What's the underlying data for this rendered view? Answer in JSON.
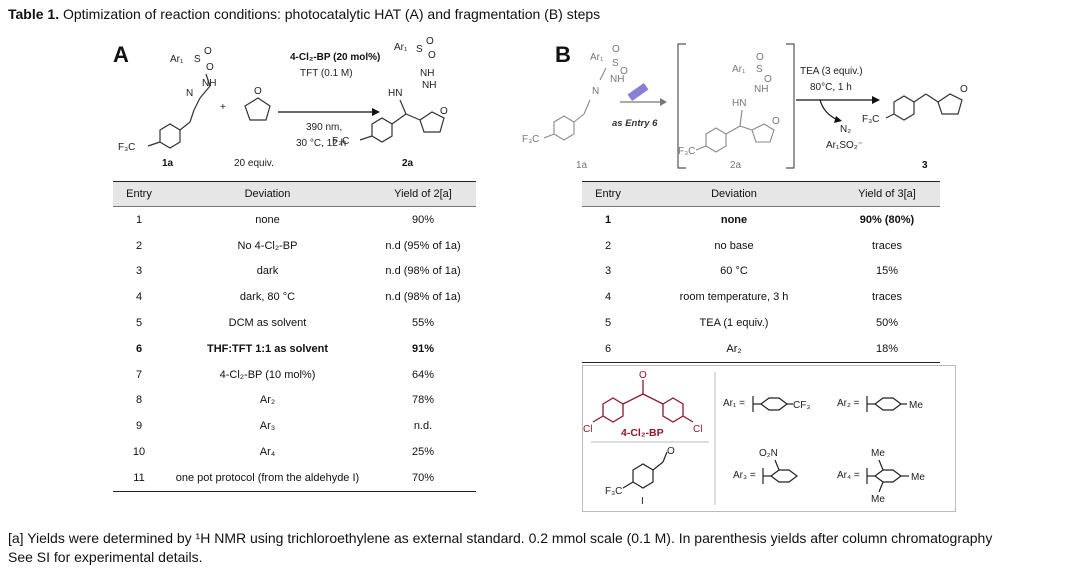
{
  "caption": {
    "label": "Table 1.",
    "text": " Optimization of reaction conditions: photocatalytic HAT (A) and fragmentation (B) steps"
  },
  "panel_a": {
    "letter": "A",
    "reagent_catalyst": "4-Cl₂-BP (20 mol%)",
    "reagent_solvent": "TFT (0.1 M)",
    "condition_light": "390 nm,",
    "condition_temp": "30 °C, 12 h",
    "label_1a": "1a",
    "label_equiv": "20 equiv.",
    "label_2a": "2a",
    "ar1": "Ar₁",
    "f3c": "F₃C",
    "headers": [
      "Entry",
      "Deviation",
      "Yield of 2[a]"
    ],
    "rows": [
      {
        "entry": "1",
        "deviation": "none",
        "yield": "90%"
      },
      {
        "entry": "2",
        "deviation": "No 4-Cl₂-BP",
        "yield": "n.d (95% of 1a)"
      },
      {
        "entry": "3",
        "deviation": "dark",
        "yield": "n.d (98% of 1a)"
      },
      {
        "entry": "4",
        "deviation": "dark, 80 °C",
        "yield": "n.d (98% of 1a)"
      },
      {
        "entry": "5",
        "deviation": "DCM as solvent",
        "yield": "55%"
      },
      {
        "entry": "6",
        "deviation": "THF:TFT 1:1 as solvent",
        "yield": "91%"
      },
      {
        "entry": "7",
        "deviation": "4-Cl₂-BP (10 mol%)",
        "yield": "64%"
      },
      {
        "entry": "8",
        "deviation": "Ar₂",
        "yield": "78%"
      },
      {
        "entry": "9",
        "deviation": "Ar₃",
        "yield": "n.d."
      },
      {
        "entry": "10",
        "deviation": "Ar₄",
        "yield": "25%"
      },
      {
        "entry": "11",
        "deviation": "one pot protocol (from the aldehyde I)",
        "yield": "70%"
      }
    ]
  },
  "panel_b": {
    "letter": "B",
    "reagent_base": "TEA (3 equiv.)",
    "reagent_conditions": "80°C, 1 h",
    "as_entry": "as Entry 6",
    "byproduct_n2": "N₂",
    "byproduct_so2": "Ar₁SO₂⁻",
    "label_1a": "1a",
    "label_2a": "2a",
    "label_3": "3",
    "ar1": "Ar₁",
    "f3c": "F₃C",
    "headers": [
      "Entry",
      "Deviation",
      "Yield of 3[a]"
    ],
    "rows": [
      {
        "entry": "1",
        "deviation": "none",
        "yield": "90% (80%)"
      },
      {
        "entry": "2",
        "deviation": "no base",
        "yield": "traces"
      },
      {
        "entry": "3",
        "deviation": "60 °C",
        "yield": "15%"
      },
      {
        "entry": "4",
        "deviation": "room temperature, 3 h",
        "yield": "traces"
      },
      {
        "entry": "5",
        "deviation": "TEA (1 equiv.)",
        "yield": "50%"
      },
      {
        "entry": "6",
        "deviation": "Ar₂",
        "yield": "18%"
      }
    ]
  },
  "legend": {
    "catalyst_name": "4-Cl₂-BP",
    "cl": "Cl",
    "ar1_label": "Ar₁ =",
    "ar1_sub": "CF₃",
    "ar2_label": "Ar₂ =",
    "ar2_sub": "Me",
    "ar3_label": "Ar₃ =",
    "ar3_sub": "O₂N",
    "ar4_label": "Ar₄ =",
    "ar4_sub": "Me",
    "aldehyde_f3c": "F₃C",
    "aldehyde_i": "I",
    "catalyst_color": "#8b1a2b"
  },
  "footnote": {
    "line1": "[a] Yields were determined by ¹H NMR using trichloroethylene as external standard. 0.2 mmol scale (0.1 M). In parenthesis yields after column chromatography",
    "line2": "See SI for experimental details."
  }
}
